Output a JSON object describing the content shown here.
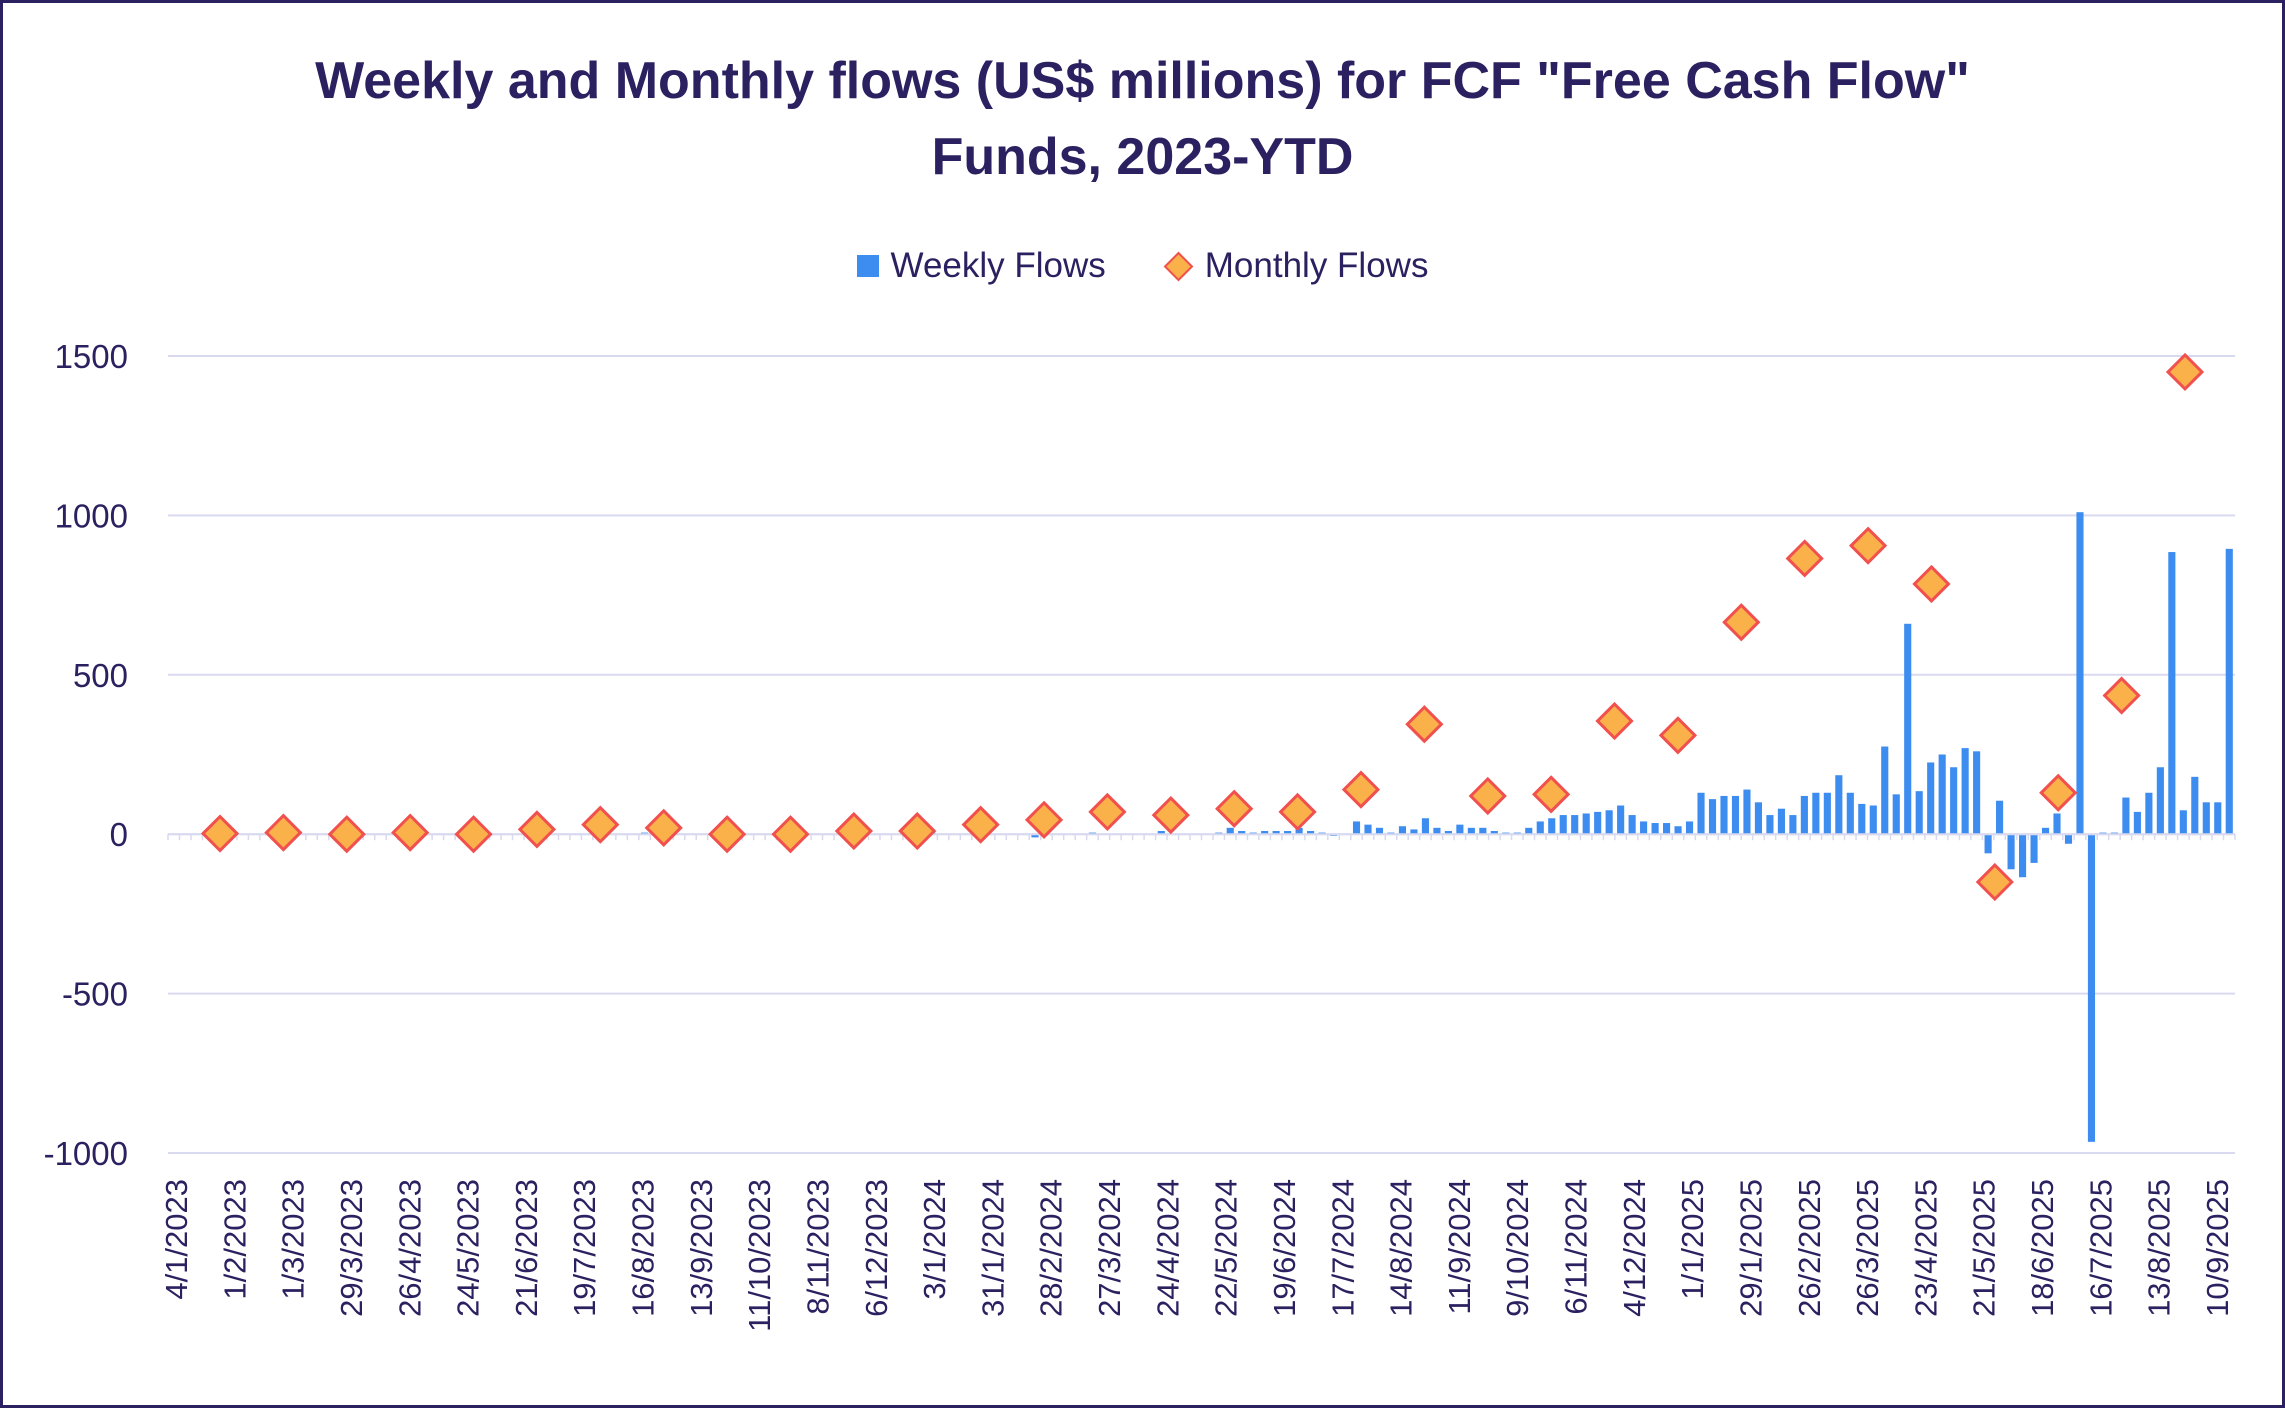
{
  "chart_data": {
    "type": "bar",
    "title_lines": [
      "Weekly and Monthly flows (US$ millions) for FCF \"Free Cash Flow\"",
      "Funds, 2023-YTD"
    ],
    "xlabel": "",
    "ylabel": "",
    "ylim": [
      -1000,
      1500
    ],
    "yticks": [
      -1000,
      -500,
      0,
      500,
      1000,
      1500
    ],
    "grid": true,
    "legend_position": "top-center",
    "colors": {
      "weekly": "#3d8cf0",
      "monthly_fill": "#fbb14a",
      "monthly_edge": "#f0504e",
      "grid": "#d9d9f0",
      "text": "#2b2160"
    },
    "x_tick_labels": [
      "4/1/2023",
      "1/2/2023",
      "1/3/2023",
      "29/3/2023",
      "26/4/2023",
      "24/5/2023",
      "21/6/2023",
      "19/7/2023",
      "16/8/2023",
      "13/9/2023",
      "11/10/2023",
      "8/11/2023",
      "6/12/2023",
      "3/1/2024",
      "31/1/2024",
      "28/2/2024",
      "27/3/2024",
      "24/4/2024",
      "22/5/2024",
      "19/6/2024",
      "17/7/2024",
      "14/8/2024",
      "11/9/2024",
      "9/10/2024",
      "6/11/2024",
      "4/12/2024",
      "1/1/2025",
      "29/1/2025",
      "26/2/2025",
      "26/3/2025",
      "23/4/2025",
      "21/5/2025",
      "18/6/2025",
      "16/7/2025",
      "13/8/2025",
      "10/9/2025"
    ],
    "series": [
      {
        "name": "Weekly Flows",
        "type": "bar",
        "values": [
          0,
          0,
          0,
          0,
          0,
          0,
          0,
          0,
          0,
          0,
          0,
          0,
          0,
          0,
          0,
          0,
          0,
          0,
          0,
          0,
          0,
          0,
          0,
          0,
          0,
          0,
          0,
          0,
          0,
          0,
          0,
          10,
          0,
          0,
          0,
          0,
          0,
          0,
          0,
          0,
          0,
          5,
          0,
          0,
          0,
          0,
          0,
          0,
          0,
          0,
          0,
          0,
          0,
          5,
          0,
          0,
          0,
          0,
          0,
          0,
          0,
          0,
          0,
          0,
          0,
          0,
          5,
          0,
          0,
          0,
          0,
          0,
          0,
          0,
          0,
          -10,
          0,
          0,
          0,
          0,
          5,
          0,
          0,
          0,
          0,
          0,
          10,
          0,
          0,
          0,
          0,
          5,
          20,
          10,
          5,
          10,
          10,
          10,
          20,
          10,
          5,
          -5,
          0,
          40,
          30,
          20,
          5,
          25,
          15,
          50,
          20,
          10,
          30,
          20,
          20,
          10,
          5,
          5,
          20,
          40,
          50,
          60,
          60,
          65,
          70,
          75,
          90,
          60,
          40,
          35,
          35,
          25,
          40,
          130,
          110,
          120,
          120,
          140,
          100,
          60,
          80,
          60,
          120,
          130,
          130,
          185,
          130,
          95,
          90,
          275,
          125,
          660,
          135,
          225,
          250,
          210,
          270,
          260,
          -60,
          105,
          -110,
          -135,
          -90,
          20,
          65,
          -30,
          1010,
          -965,
          5,
          5,
          115,
          70,
          130,
          210,
          885,
          75,
          180,
          100,
          100,
          895
        ]
      },
      {
        "name": "Monthly Flows",
        "type": "scatter",
        "marker": "diamond",
        "values": [
          2,
          5,
          0,
          5,
          0,
          15,
          30,
          20,
          0,
          0,
          10,
          10,
          30,
          45,
          70,
          60,
          80,
          70,
          140,
          345,
          120,
          125,
          355,
          310,
          665,
          865,
          905,
          785,
          -150,
          130,
          435,
          1450
        ]
      }
    ]
  }
}
